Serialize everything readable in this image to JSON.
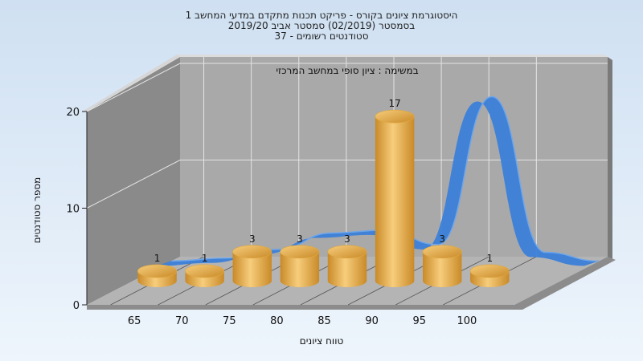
{
  "chart_data": {
    "type": "bar",
    "title_lines": [
      "היסטוגרמת ציונים בקורס - פריקט תכנות מתקדם במדעי המחשב 1",
      "בסמסטר  (02/2019)  סמסטר אביב 2019/20",
      "סטודנטים רשומים - 37"
    ],
    "annotation": "במשימה : ציון סופי במחשב המרכזי",
    "xlabel": "טווח ציונים",
    "ylabel": "מספר סטודנטים",
    "categories": [
      "65",
      "70",
      "75",
      "80",
      "85",
      "90",
      "95",
      "100"
    ],
    "values": [
      1,
      1,
      3,
      3,
      3,
      17,
      3,
      1
    ],
    "ylim": [
      0,
      20
    ],
    "yticks": [
      "0",
      "10",
      "20"
    ],
    "curve_values": [
      0.3,
      0.6,
      1.5,
      3.2,
      3.5,
      2.0,
      17.3,
      1.2,
      0.3
    ],
    "grid": true,
    "colors": {
      "background_top": "#cfe0f2",
      "background_bottom": "#eef5fc",
      "back_wall": "#a9a9a9",
      "side_wall": "#8a8a8a",
      "floor": "#b4b4b4",
      "bar_light": "#f7cd7c",
      "bar_dark": "#c98a28",
      "curve": "#3b7fd9"
    }
  }
}
